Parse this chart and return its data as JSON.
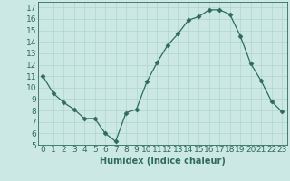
{
  "x": [
    0,
    1,
    2,
    3,
    4,
    5,
    6,
    7,
    8,
    9,
    10,
    11,
    12,
    13,
    14,
    15,
    16,
    17,
    18,
    19,
    20,
    21,
    22,
    23
  ],
  "y": [
    11.0,
    9.5,
    8.7,
    8.1,
    7.3,
    7.3,
    6.0,
    5.3,
    7.8,
    8.1,
    10.5,
    12.2,
    13.7,
    14.7,
    15.9,
    16.2,
    16.8,
    16.8,
    16.4,
    14.5,
    12.1,
    10.6,
    8.8,
    7.9
  ],
  "line_color": "#2e6b5e",
  "marker": "D",
  "marker_size": 2.5,
  "bg_color": "#cce8e4",
  "grid_color": "#b0d4ce",
  "xlabel": "Humidex (Indice chaleur)",
  "ylim": [
    5,
    17.5
  ],
  "xlim": [
    -0.5,
    23.5
  ],
  "yticks": [
    5,
    6,
    7,
    8,
    9,
    10,
    11,
    12,
    13,
    14,
    15,
    16,
    17
  ],
  "xticks": [
    0,
    1,
    2,
    3,
    4,
    5,
    6,
    7,
    8,
    9,
    10,
    11,
    12,
    13,
    14,
    15,
    16,
    17,
    18,
    19,
    20,
    21,
    22,
    23
  ],
  "xlabel_fontsize": 7,
  "tick_fontsize": 6.5
}
